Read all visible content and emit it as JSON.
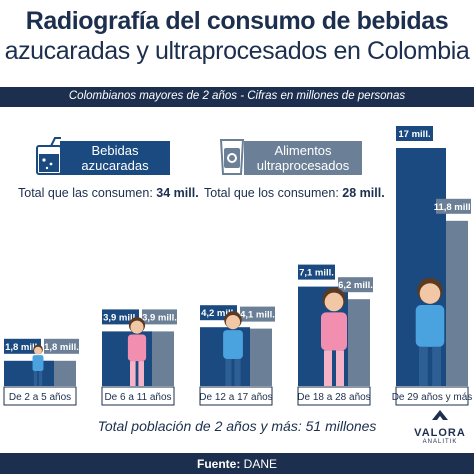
{
  "title": {
    "line1": "Radiografía del consumo de bebidas",
    "line2": "azucaradas y ultraprocesados en Colombia"
  },
  "subtitle": "Colombianos mayores de 2 años - Cifras en millones de personas",
  "legend": {
    "sugar": {
      "line1": "Bebidas",
      "line2": "azucaradas",
      "icon": "soda-cup-icon"
    },
    "ultra": {
      "line1": "Alimentos",
      "line2": "ultraprocesados",
      "icon": "snack-bag-icon"
    }
  },
  "totals": {
    "sugar": {
      "label": "Total que las consumen:",
      "value": "34 mill."
    },
    "ultra": {
      "label": "Total que los consumen:",
      "value": "28 mill."
    }
  },
  "colors": {
    "sugar": "#1b4a80",
    "ultra": "#6b7f96",
    "dark": "#1d2f4e"
  },
  "chart_data": {
    "type": "bar",
    "categories": [
      "De 2 a 5 años",
      "De 6 a 11 años",
      "De 12 a 17 años",
      "De 18 a 28 años",
      "De 29 años y más"
    ],
    "series": [
      {
        "name": "Bebidas azucaradas",
        "values": [
          1.8,
          3.9,
          4.2,
          7.1,
          17
        ],
        "labels": [
          "1,8 mill.",
          "3,9 mill.",
          "4,2 mill.",
          "7,1 mill.",
          "17 mill."
        ]
      },
      {
        "name": "Alimentos ultraprocesados",
        "values": [
          1.8,
          3.9,
          4.1,
          6.2,
          11.8
        ],
        "labels": [
          "1,8 mill.",
          "3,9 mill.",
          "4,1 mill.",
          "6,2 mill.",
          "11,8 mill."
        ]
      }
    ],
    "unit": "millones de personas",
    "ylim": [
      0,
      17
    ],
    "grid": false,
    "legend": "top-left"
  },
  "footer_note": "Total población de 2 años y más: 51 millones",
  "source": {
    "label": "Fuente:",
    "value": "DANE"
  },
  "brand": {
    "name": "VALORA",
    "tagline": "ANALITIK"
  }
}
